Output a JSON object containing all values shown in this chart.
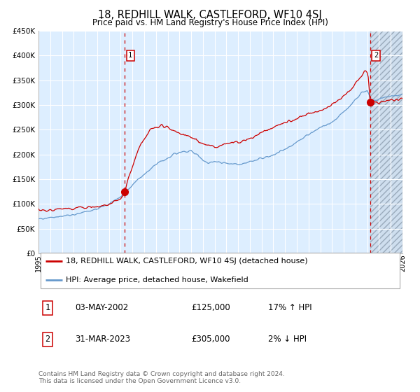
{
  "title": "18, REDHILL WALK, CASTLEFORD, WF10 4SJ",
  "subtitle": "Price paid vs. HM Land Registry's House Price Index (HPI)",
  "legend_line1": "18, REDHILL WALK, CASTLEFORD, WF10 4SJ (detached house)",
  "legend_line2": "HPI: Average price, detached house, Wakefield",
  "table_row1_num": "1",
  "table_row1_date": "03-MAY-2002",
  "table_row1_price": "£125,000",
  "table_row1_hpi": "17% ↑ HPI",
  "table_row2_num": "2",
  "table_row2_date": "31-MAR-2023",
  "table_row2_price": "£305,000",
  "table_row2_hpi": "2% ↓ HPI",
  "footer": "Contains HM Land Registry data © Crown copyright and database right 2024.\nThis data is licensed under the Open Government Licence v3.0.",
  "red_color": "#cc0000",
  "blue_color": "#6699cc",
  "bg_color": "#ddeeff",
  "grid_color": "#ffffff",
  "hatch_color": "#c8d8e8",
  "marker_color": "#cc0000",
  "dashed_color": "#cc0000",
  "ylim": [
    0,
    450000
  ],
  "yticks": [
    0,
    50000,
    100000,
    150000,
    200000,
    250000,
    300000,
    350000,
    400000,
    450000
  ],
  "xstart_year": 1995,
  "xend_year": 2026,
  "sale1_year": 2002.34,
  "sale1_value": 125000,
  "sale2_year": 2023.25,
  "sale2_value": 305000,
  "title_fontsize": 10.5,
  "subtitle_fontsize": 8.5,
  "axis_fontsize": 7.5,
  "legend_fontsize": 8,
  "table_fontsize": 8.5,
  "footer_fontsize": 6.5
}
